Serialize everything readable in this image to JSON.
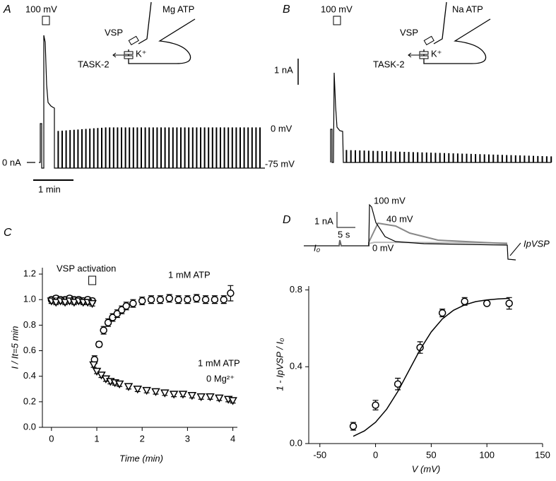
{
  "traces": {
    "A": {
      "letter": "A",
      "pulse_label": "100 mV",
      "solution": "Mg ATP",
      "vsp": "VSP",
      "ion": "K⁺",
      "channel": "TASK-2",
      "current_label": "0 nA",
      "time_scale": "1 min",
      "voltage_labels": [
        "0 mV",
        "-75 mV"
      ]
    },
    "B": {
      "letter": "B",
      "pulse_label": "100 mV",
      "solution": "Na ATP",
      "vsp": "VSP",
      "ion": "K⁺",
      "channel": "TASK-2",
      "current_scale": "1 nA"
    },
    "D": {
      "current_scale": "1 nA",
      "time_scale": "5 s",
      "voltages": [
        "100 mV",
        "40 mV",
        "0 mV"
      ],
      "i0": "I₀",
      "ipvsp": "IpVSP"
    }
  },
  "chart_data": [
    {
      "type": "scatter",
      "panel": "C",
      "xlabel": "Time (min)",
      "ylabel": "I / It=5 min",
      "xlim": [
        -0.2,
        4.1
      ],
      "ylim": [
        0,
        1.25
      ],
      "xticks": [
        0,
        1,
        2,
        3,
        4
      ],
      "yticks": [
        {
          "value": 0,
          "label": "0.0"
        },
        0.2,
        0.4,
        0.6,
        0.8,
        {
          "value": 1,
          "label": "1.0"
        },
        1.2
      ],
      "annotations": [
        "VSP activation",
        "0 Mg²⁺"
      ],
      "series": [
        {
          "name": "1 mM ATP",
          "marker": "circle",
          "color": "#000",
          "x": [
            0,
            0.1,
            0.2,
            0.3,
            0.4,
            0.5,
            0.6,
            0.7,
            0.8,
            0.9,
            0.95,
            1.05,
            1.15,
            1.25,
            1.35,
            1.45,
            1.55,
            1.65,
            1.8,
            2.0,
            2.2,
            2.4,
            2.6,
            2.8,
            3.0,
            3.2,
            3.4,
            3.6,
            3.8,
            3.95
          ],
          "values": [
            1.0,
            1.01,
            1.0,
            1.0,
            1.01,
            1.0,
            1.0,
            0.99,
            1.0,
            0.99,
            0.53,
            0.65,
            0.76,
            0.82,
            0.86,
            0.89,
            0.92,
            0.95,
            0.97,
            0.99,
            1.0,
            1.0,
            1.01,
            1.0,
            1.0,
            1.01,
            1.0,
            1.0,
            1.0,
            1.05
          ],
          "errors": [
            0.02,
            0.02,
            0.02,
            0.02,
            0.02,
            0.02,
            0.02,
            0.02,
            0.02,
            0.02,
            0.03,
            0.02,
            0.03,
            0.03,
            0.03,
            0.03,
            0.03,
            0.03,
            0.03,
            0.03,
            0.03,
            0.03,
            0.03,
            0.03,
            0.03,
            0.03,
            0.03,
            0.03,
            0.03,
            0.06
          ]
        },
        {
          "name": "1 mM ATP",
          "marker": "triangle",
          "color": "#000",
          "x": [
            0,
            0.1,
            0.2,
            0.3,
            0.4,
            0.5,
            0.6,
            0.7,
            0.8,
            0.9,
            0.93,
            1.0,
            1.1,
            1.2,
            1.3,
            1.4,
            1.5,
            1.7,
            1.9,
            2.1,
            2.3,
            2.5,
            2.7,
            2.9,
            3.1,
            3.3,
            3.5,
            3.7,
            3.9,
            4.0
          ],
          "values": [
            0.99,
            0.98,
            0.99,
            0.98,
            0.99,
            0.98,
            0.99,
            0.98,
            0.98,
            0.97,
            0.49,
            0.44,
            0.41,
            0.38,
            0.36,
            0.35,
            0.34,
            0.32,
            0.3,
            0.29,
            0.28,
            0.27,
            0.26,
            0.26,
            0.25,
            0.24,
            0.24,
            0.23,
            0.22,
            0.21
          ],
          "errors": [
            0.02,
            0.02,
            0.02,
            0.02,
            0.02,
            0.02,
            0.02,
            0.02,
            0.02,
            0.02,
            0.02,
            0.02,
            0.02,
            0.02,
            0.02,
            0.02,
            0.02,
            0.02,
            0.02,
            0.02,
            0.02,
            0.02,
            0.02,
            0.02,
            0.02,
            0.02,
            0.02,
            0.02,
            0.02,
            0.02
          ]
        }
      ]
    },
    {
      "type": "scatter",
      "panel": "D",
      "xlabel": "V (mV)",
      "ylabel": "1 - IpVSP / I₀",
      "xlim": [
        -60,
        150
      ],
      "ylim": [
        0,
        0.82
      ],
      "xticks": [
        -50,
        0,
        50,
        100,
        150
      ],
      "yticks": [
        {
          "value": 0,
          "label": "0.0"
        },
        0.4,
        0.8
      ],
      "series": [
        {
          "marker": "circle",
          "color": "#000",
          "x": [
            -20,
            0,
            20,
            40,
            60,
            80,
            100,
            120
          ],
          "values": [
            0.09,
            0.2,
            0.31,
            0.5,
            0.68,
            0.74,
            0.73,
            0.73
          ],
          "errors": [
            0.02,
            0.025,
            0.03,
            0.03,
            0.02,
            0.02,
            0.01,
            0.03
          ]
        },
        {
          "marker": "line",
          "color": "#000",
          "x": [
            -20,
            -10,
            0,
            10,
            20,
            30,
            40,
            50,
            60,
            70,
            80,
            90,
            100,
            110,
            120
          ],
          "values": [
            0.038,
            0.066,
            0.111,
            0.179,
            0.271,
            0.38,
            0.489,
            0.581,
            0.649,
            0.694,
            0.722,
            0.739,
            0.748,
            0.753,
            0.756
          ]
        }
      ]
    }
  ]
}
